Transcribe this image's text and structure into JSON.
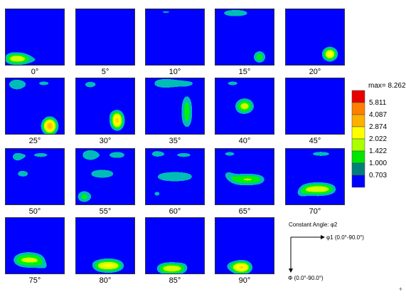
{
  "chart_data": {
    "type": "heatmap",
    "section_labels": [
      "0°",
      "5°",
      "10°",
      "15°",
      "20°",
      "25°",
      "30°",
      "35°",
      "40°",
      "45°",
      "50°",
      "55°",
      "60°",
      "65°",
      "70°",
      "75°",
      "80°",
      "85°",
      "90°"
    ],
    "section_angles": [
      0,
      5,
      10,
      15,
      20,
      25,
      30,
      35,
      40,
      45,
      50,
      55,
      60,
      65,
      70,
      75,
      80,
      85,
      90
    ],
    "legend": {
      "max_label": "max= 8.262",
      "max": 8.262,
      "levels": [
        5.811,
        4.087,
        2.874,
        2.022,
        1.422,
        1.0,
        0.703
      ],
      "level_labels": [
        "5.811",
        "4.087",
        "2.874",
        "2.022",
        "1.422",
        "1.000",
        "0.703"
      ],
      "colors": [
        "#0000ff",
        "#00807a",
        "#00e600",
        "#aaff00",
        "#ffff00",
        "#ffb000",
        "#ff8000",
        "#e80000"
      ]
    },
    "axes_note": {
      "constant": "Constant Angle: φ2",
      "horizontal": "φ1 (0.0°-90.0°)",
      "vertical": "Φ (0.0°-90.0°)"
    }
  },
  "corner_mark": "+"
}
